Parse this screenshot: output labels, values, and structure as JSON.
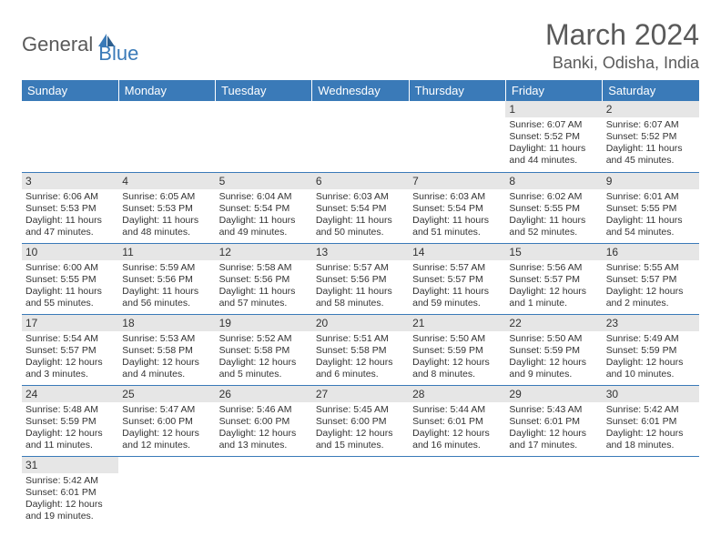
{
  "brand": {
    "general": "General",
    "blue": "Blue"
  },
  "title": "March 2024",
  "location": "Banki, Odisha, India",
  "colors": {
    "header_bg": "#3a7ab8",
    "header_fg": "#ffffff",
    "daynum_bg": "#e6e6e6",
    "border": "#3a7ab8",
    "text": "#333333",
    "title_text": "#5a5a5a"
  },
  "day_labels": [
    "Sunday",
    "Monday",
    "Tuesday",
    "Wednesday",
    "Thursday",
    "Friday",
    "Saturday"
  ],
  "weeks": [
    [
      null,
      null,
      null,
      null,
      null,
      {
        "n": "1",
        "sr": "Sunrise: 6:07 AM",
        "ss": "Sunset: 5:52 PM",
        "dl": "Daylight: 11 hours and 44 minutes."
      },
      {
        "n": "2",
        "sr": "Sunrise: 6:07 AM",
        "ss": "Sunset: 5:52 PM",
        "dl": "Daylight: 11 hours and 45 minutes."
      }
    ],
    [
      {
        "n": "3",
        "sr": "Sunrise: 6:06 AM",
        "ss": "Sunset: 5:53 PM",
        "dl": "Daylight: 11 hours and 47 minutes."
      },
      {
        "n": "4",
        "sr": "Sunrise: 6:05 AM",
        "ss": "Sunset: 5:53 PM",
        "dl": "Daylight: 11 hours and 48 minutes."
      },
      {
        "n": "5",
        "sr": "Sunrise: 6:04 AM",
        "ss": "Sunset: 5:54 PM",
        "dl": "Daylight: 11 hours and 49 minutes."
      },
      {
        "n": "6",
        "sr": "Sunrise: 6:03 AM",
        "ss": "Sunset: 5:54 PM",
        "dl": "Daylight: 11 hours and 50 minutes."
      },
      {
        "n": "7",
        "sr": "Sunrise: 6:03 AM",
        "ss": "Sunset: 5:54 PM",
        "dl": "Daylight: 11 hours and 51 minutes."
      },
      {
        "n": "8",
        "sr": "Sunrise: 6:02 AM",
        "ss": "Sunset: 5:55 PM",
        "dl": "Daylight: 11 hours and 52 minutes."
      },
      {
        "n": "9",
        "sr": "Sunrise: 6:01 AM",
        "ss": "Sunset: 5:55 PM",
        "dl": "Daylight: 11 hours and 54 minutes."
      }
    ],
    [
      {
        "n": "10",
        "sr": "Sunrise: 6:00 AM",
        "ss": "Sunset: 5:55 PM",
        "dl": "Daylight: 11 hours and 55 minutes."
      },
      {
        "n": "11",
        "sr": "Sunrise: 5:59 AM",
        "ss": "Sunset: 5:56 PM",
        "dl": "Daylight: 11 hours and 56 minutes."
      },
      {
        "n": "12",
        "sr": "Sunrise: 5:58 AM",
        "ss": "Sunset: 5:56 PM",
        "dl": "Daylight: 11 hours and 57 minutes."
      },
      {
        "n": "13",
        "sr": "Sunrise: 5:57 AM",
        "ss": "Sunset: 5:56 PM",
        "dl": "Daylight: 11 hours and 58 minutes."
      },
      {
        "n": "14",
        "sr": "Sunrise: 5:57 AM",
        "ss": "Sunset: 5:57 PM",
        "dl": "Daylight: 11 hours and 59 minutes."
      },
      {
        "n": "15",
        "sr": "Sunrise: 5:56 AM",
        "ss": "Sunset: 5:57 PM",
        "dl": "Daylight: 12 hours and 1 minute."
      },
      {
        "n": "16",
        "sr": "Sunrise: 5:55 AM",
        "ss": "Sunset: 5:57 PM",
        "dl": "Daylight: 12 hours and 2 minutes."
      }
    ],
    [
      {
        "n": "17",
        "sr": "Sunrise: 5:54 AM",
        "ss": "Sunset: 5:57 PM",
        "dl": "Daylight: 12 hours and 3 minutes."
      },
      {
        "n": "18",
        "sr": "Sunrise: 5:53 AM",
        "ss": "Sunset: 5:58 PM",
        "dl": "Daylight: 12 hours and 4 minutes."
      },
      {
        "n": "19",
        "sr": "Sunrise: 5:52 AM",
        "ss": "Sunset: 5:58 PM",
        "dl": "Daylight: 12 hours and 5 minutes."
      },
      {
        "n": "20",
        "sr": "Sunrise: 5:51 AM",
        "ss": "Sunset: 5:58 PM",
        "dl": "Daylight: 12 hours and 6 minutes."
      },
      {
        "n": "21",
        "sr": "Sunrise: 5:50 AM",
        "ss": "Sunset: 5:59 PM",
        "dl": "Daylight: 12 hours and 8 minutes."
      },
      {
        "n": "22",
        "sr": "Sunrise: 5:50 AM",
        "ss": "Sunset: 5:59 PM",
        "dl": "Daylight: 12 hours and 9 minutes."
      },
      {
        "n": "23",
        "sr": "Sunrise: 5:49 AM",
        "ss": "Sunset: 5:59 PM",
        "dl": "Daylight: 12 hours and 10 minutes."
      }
    ],
    [
      {
        "n": "24",
        "sr": "Sunrise: 5:48 AM",
        "ss": "Sunset: 5:59 PM",
        "dl": "Daylight: 12 hours and 11 minutes."
      },
      {
        "n": "25",
        "sr": "Sunrise: 5:47 AM",
        "ss": "Sunset: 6:00 PM",
        "dl": "Daylight: 12 hours and 12 minutes."
      },
      {
        "n": "26",
        "sr": "Sunrise: 5:46 AM",
        "ss": "Sunset: 6:00 PM",
        "dl": "Daylight: 12 hours and 13 minutes."
      },
      {
        "n": "27",
        "sr": "Sunrise: 5:45 AM",
        "ss": "Sunset: 6:00 PM",
        "dl": "Daylight: 12 hours and 15 minutes."
      },
      {
        "n": "28",
        "sr": "Sunrise: 5:44 AM",
        "ss": "Sunset: 6:01 PM",
        "dl": "Daylight: 12 hours and 16 minutes."
      },
      {
        "n": "29",
        "sr": "Sunrise: 5:43 AM",
        "ss": "Sunset: 6:01 PM",
        "dl": "Daylight: 12 hours and 17 minutes."
      },
      {
        "n": "30",
        "sr": "Sunrise: 5:42 AM",
        "ss": "Sunset: 6:01 PM",
        "dl": "Daylight: 12 hours and 18 minutes."
      }
    ],
    [
      {
        "n": "31",
        "sr": "Sunrise: 5:42 AM",
        "ss": "Sunset: 6:01 PM",
        "dl": "Daylight: 12 hours and 19 minutes."
      },
      null,
      null,
      null,
      null,
      null,
      null
    ]
  ]
}
